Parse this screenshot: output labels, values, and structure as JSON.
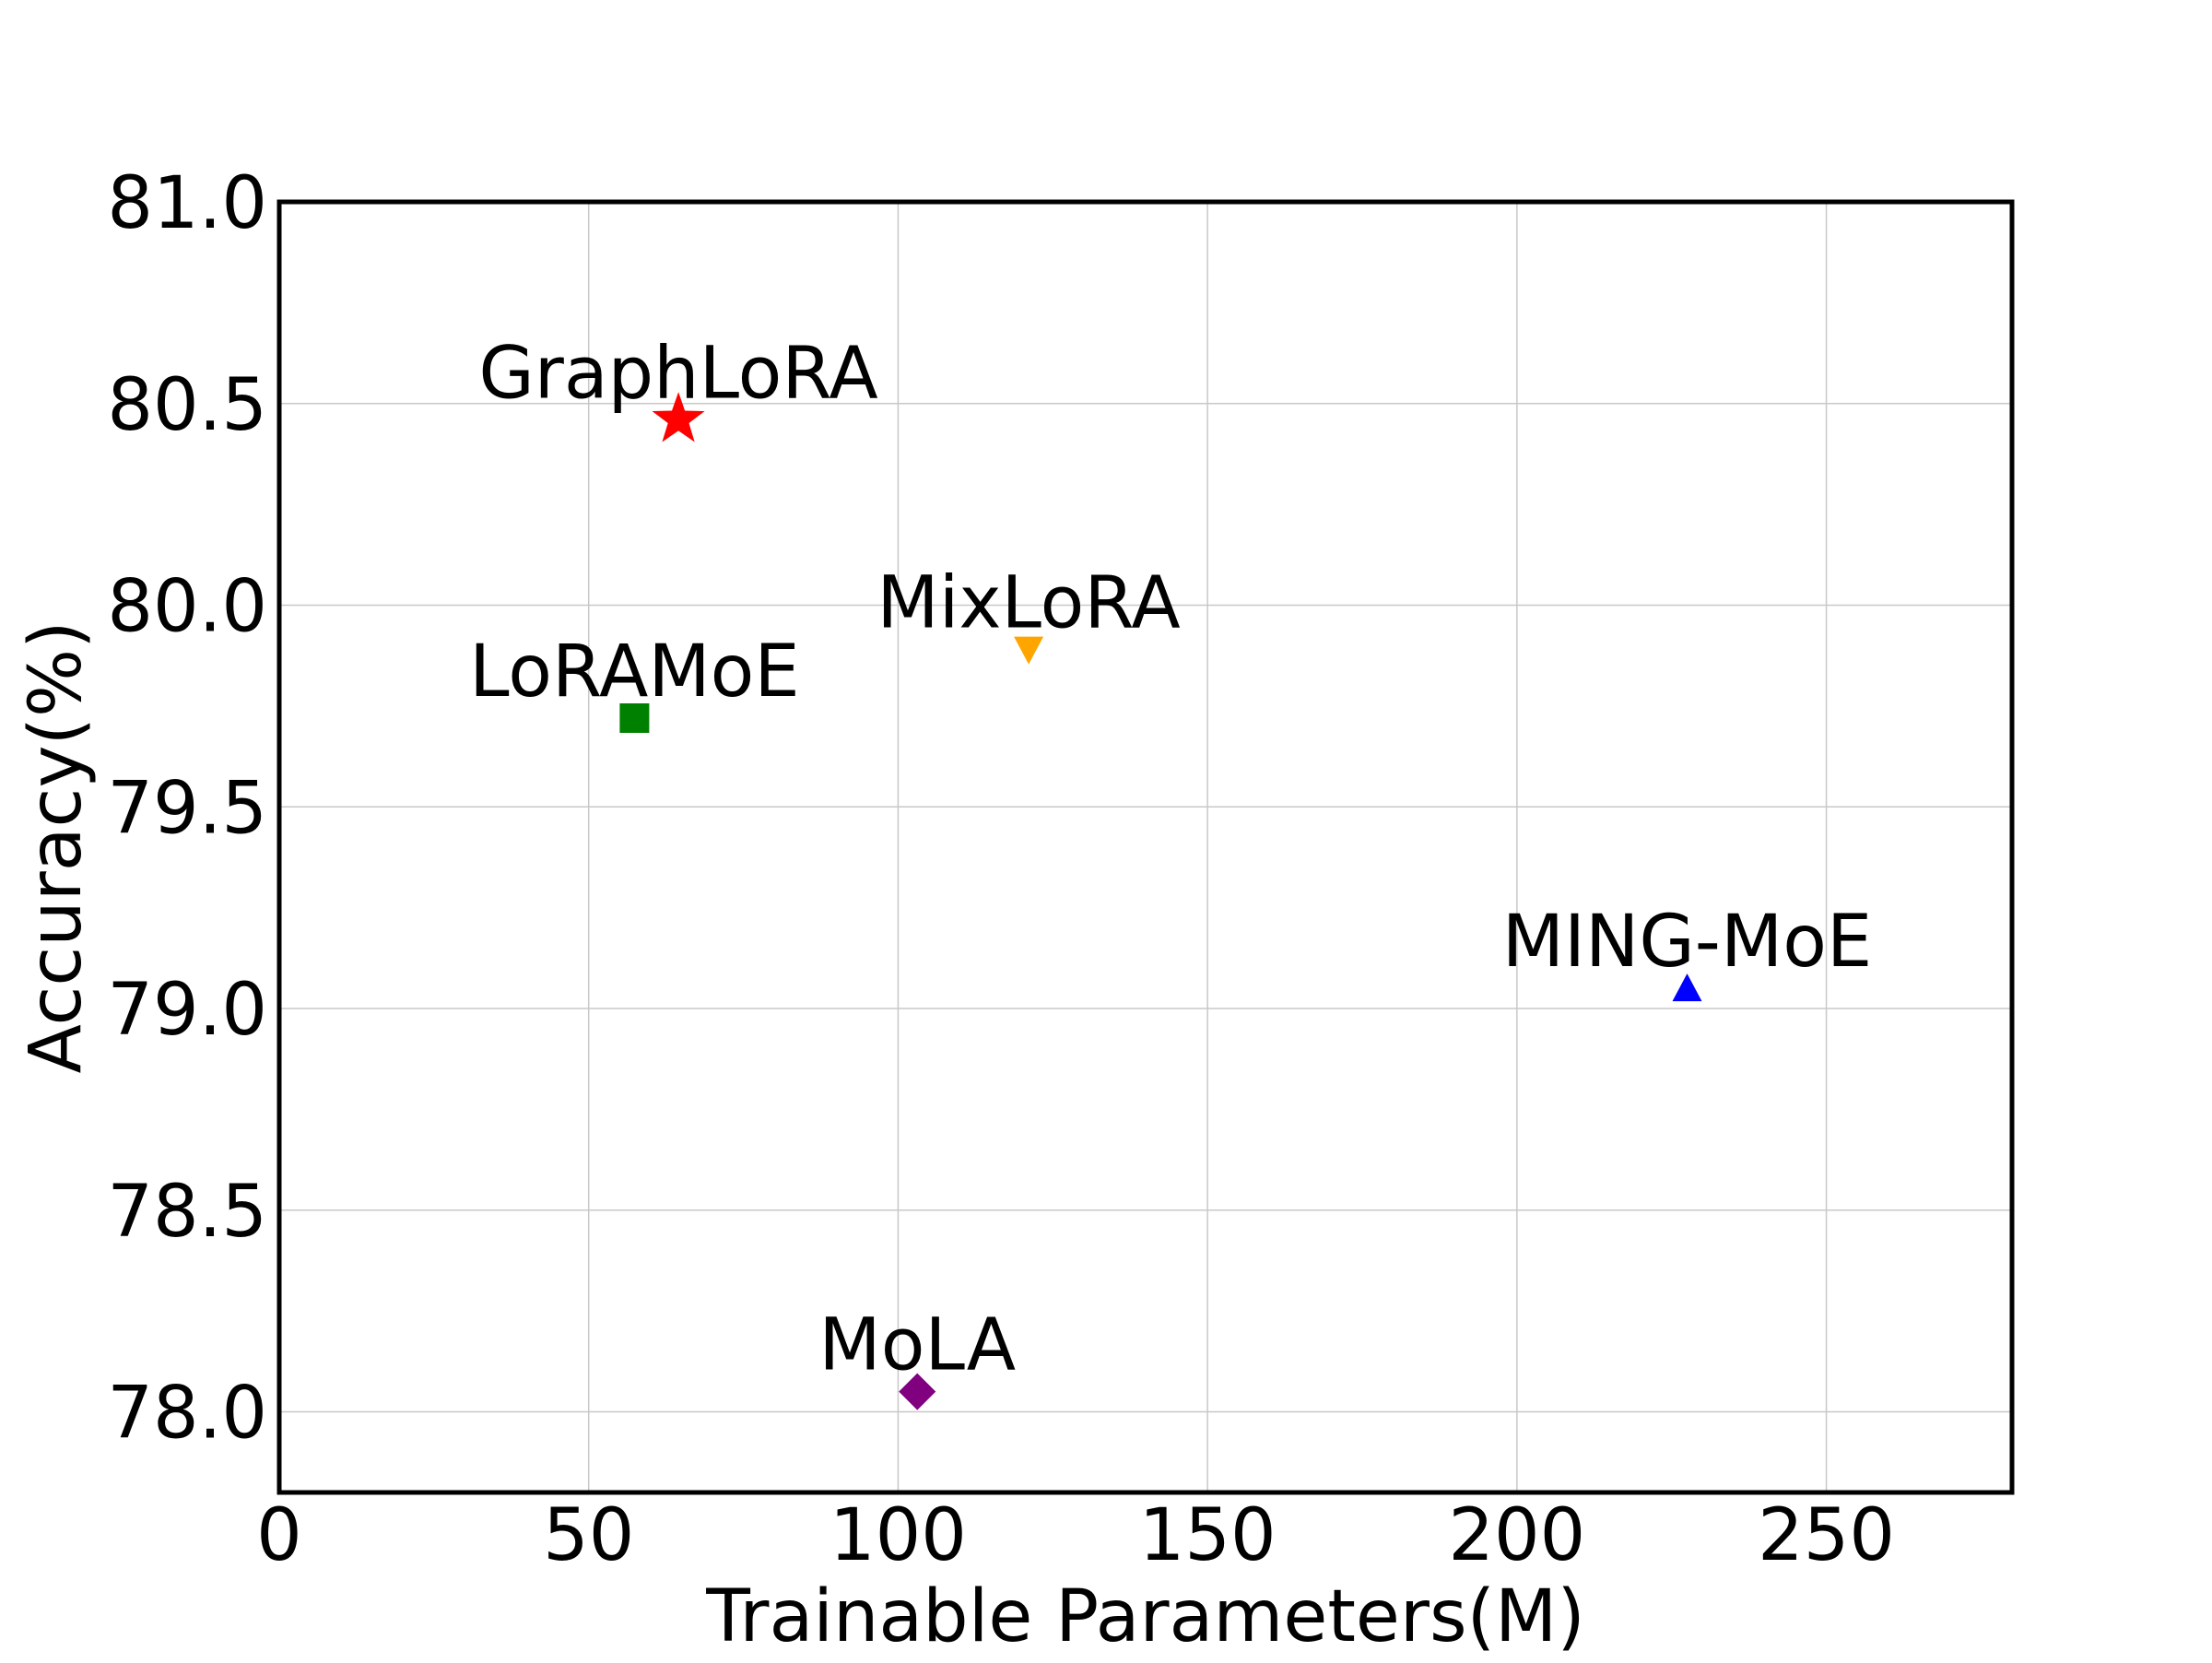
{
  "chart_data": {
    "type": "scatter",
    "title": "",
    "xlabel": "Trainable Parameters(M)",
    "ylabel": "Accuracy(%)",
    "xlim": [
      0,
      280
    ],
    "ylim": [
      77.8,
      81.0
    ],
    "xticks": [
      0,
      50,
      100,
      150,
      200,
      250
    ],
    "xtick_labels": [
      "0",
      "50",
      "100",
      "150",
      "200",
      "250"
    ],
    "yticks": [
      78.0,
      78.5,
      79.0,
      79.5,
      80.0,
      80.5,
      81.0
    ],
    "ytick_labels": [
      "78.0",
      "78.5",
      "79.0",
      "79.5",
      "80.0",
      "80.5",
      "81.0"
    ],
    "grid": true,
    "points": [
      {
        "label": "GraphLoRA",
        "x": 64.5,
        "y": 80.46,
        "marker": "star",
        "color": "#ff0000"
      },
      {
        "label": "MixLoRA",
        "x": 121.1,
        "y": 79.89,
        "marker": "triangle-down",
        "color": "#ffa500"
      },
      {
        "label": "LoRAMoE",
        "x": 57.4,
        "y": 79.72,
        "marker": "square",
        "color": "#008000"
      },
      {
        "label": "MING-MoE",
        "x": 227.5,
        "y": 79.05,
        "marker": "triangle-up",
        "color": "#0000ff"
      },
      {
        "label": "MoLA",
        "x": 103.1,
        "y": 78.05,
        "marker": "diamond",
        "color": "#800080"
      }
    ]
  }
}
